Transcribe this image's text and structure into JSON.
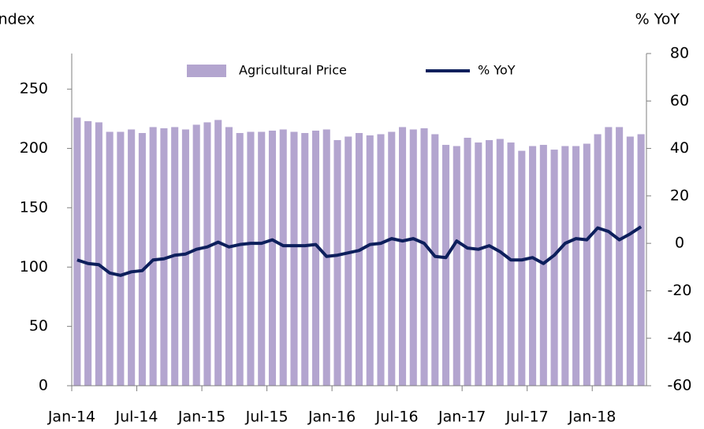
{
  "chart_data": {
    "type": "bar_line",
    "y_label": "Index",
    "y2_label": "% YoY",
    "categories": [
      "Jan-14",
      null,
      null,
      null,
      null,
      null,
      "Jul-14",
      null,
      null,
      null,
      null,
      null,
      "Jan-15",
      null,
      null,
      null,
      null,
      null,
      "Jul-15",
      null,
      null,
      null,
      null,
      null,
      "Jan-16",
      null,
      null,
      null,
      null,
      null,
      "Jul-16",
      null,
      null,
      null,
      null,
      null,
      "Jan-17",
      null,
      null,
      null,
      null,
      null,
      "Jul-17",
      null,
      null,
      null,
      null,
      null,
      "Jan-18",
      null,
      null,
      null,
      null
    ],
    "series": [
      {
        "name": "Agricultural Price",
        "color": "#b3a5cf",
        "values": [
          226,
          223,
          222,
          214,
          214,
          216,
          213,
          218,
          217,
          218,
          216,
          220,
          222,
          224,
          218,
          213,
          214,
          214,
          215,
          216,
          214,
          213,
          215,
          216,
          207,
          210,
          213,
          211,
          212,
          214,
          218,
          216,
          217,
          212,
          203,
          202,
          209,
          205,
          207,
          208,
          205,
          198,
          202,
          203,
          199,
          202,
          202,
          204,
          212,
          218,
          218,
          210,
          212
        ]
      },
      {
        "name": "% YoY",
        "color": "#0d1f5c",
        "axis": "y2",
        "values": [
          -7,
          -8.5,
          -9,
          -12.5,
          -13.5,
          -12,
          -11.5,
          -7,
          -6.5,
          -5,
          -4.5,
          -2.5,
          -1.5,
          0.5,
          -1.5,
          -0.5,
          0,
          0,
          1.5,
          -1,
          -1,
          -1,
          -0.5,
          -5.5,
          -5,
          -4,
          -3,
          -0.5,
          0,
          2,
          1,
          2,
          0,
          -5.5,
          -6,
          1,
          -2,
          -2.5,
          -1,
          -3.5,
          -7,
          -7,
          -6,
          -8.5,
          -5,
          0,
          2,
          1.5,
          6.5,
          5,
          1.5,
          4,
          7
        ]
      }
    ],
    "ylim": [
      0,
      280
    ],
    "yticks": [
      0,
      50,
      100,
      150,
      200,
      250
    ],
    "y2lim": [
      -60,
      80
    ],
    "y2ticks": [
      -60,
      -40,
      -20,
      0,
      20,
      40,
      60,
      80
    ],
    "grid": false
  }
}
